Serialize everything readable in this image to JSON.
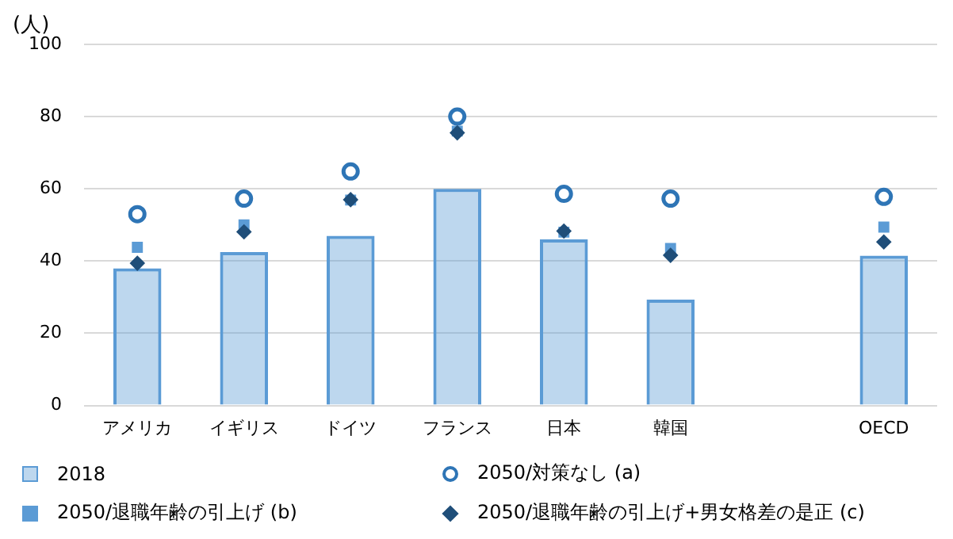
{
  "chart_data": {
    "type": "bar",
    "ylabel": "(人)",
    "categories": [
      "アメリカ",
      "イギリス",
      "ドイツ",
      "フランス",
      "日本",
      "韓国",
      null,
      "OECD"
    ],
    "series": [
      {
        "name": "2018",
        "color": "#5b9bd5",
        "values": [
          38,
          42.5,
          47,
          60,
          46,
          29.3,
          null,
          41.5
        ]
      },
      {
        "name": "2050/対策なし (a)",
        "type": "scatter",
        "marker": "circle",
        "color": "#2e75b6",
        "values": [
          53,
          57.3,
          64.8,
          80,
          58.6,
          57.3,
          null,
          57.8
        ]
      },
      {
        "name": "2050/退職年齢の引上げ (b)",
        "type": "scatter",
        "marker": "square",
        "color": "#5b9bd5",
        "values": [
          43.8,
          50,
          56.9,
          76,
          48,
          43.5,
          null,
          49.4
        ]
      },
      {
        "name": "2050/退職年齢の引上げ+男女格差の是正 (c)",
        "type": "scatter",
        "marker": "diamond",
        "color": "#1f4e79",
        "values": [
          39.4,
          48.1,
          57,
          75.5,
          48.3,
          41.6,
          null,
          45.3
        ]
      }
    ],
    "ylim": [
      0,
      100
    ],
    "yticks": [
      0,
      20,
      40,
      60,
      80,
      100
    ],
    "grid": "y",
    "legend": "bottom"
  }
}
